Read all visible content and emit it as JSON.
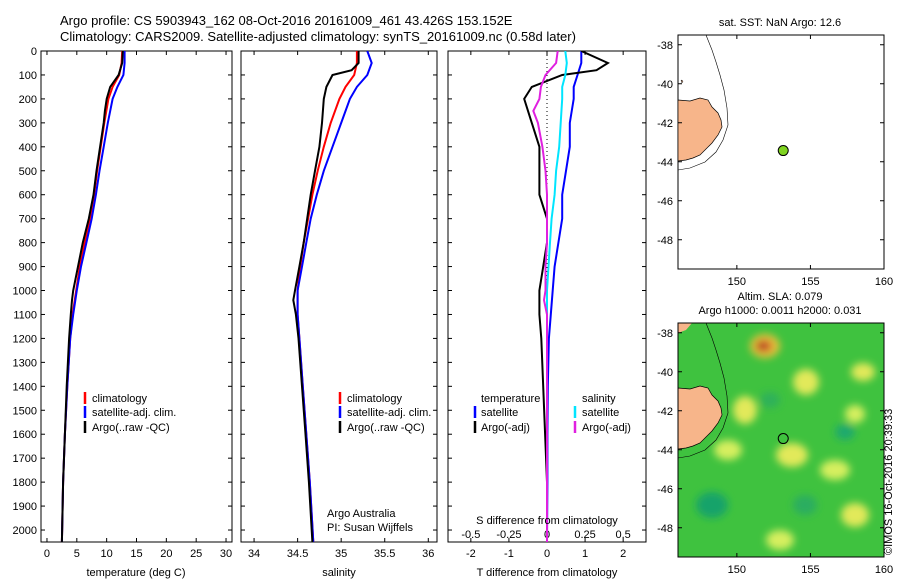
{
  "header": {
    "line1": "Argo profile: CS 5903943_162 08-Oct-2016 20161009_461 43.426S 153.152E",
    "line2": "Climatology: CARS2009. Satellite-adjusted climatology: synTS_20161009.nc (0.58d later)"
  },
  "colors": {
    "climatology": "#ff0000",
    "satellite": "#0000ff",
    "argo": "#000000",
    "sat_s": "#00e5ff",
    "argo_s": "#e020e0",
    "land": "#f7b58a",
    "marker": "#7fd321"
  },
  "chart_data": [
    {
      "type": "line",
      "name": "temperature",
      "xlabel": "temperature (deg C)",
      "ylabel": "",
      "xlim": [
        -1,
        31
      ],
      "ylim": [
        0,
        2050
      ],
      "xticks": [
        "0",
        "5",
        "10",
        "15",
        "20",
        "25",
        "30"
      ],
      "yticks": [
        "0",
        "100",
        "200",
        "300",
        "400",
        "500",
        "600",
        "700",
        "800",
        "900",
        "1000",
        "1100",
        "1200",
        "1300",
        "1400",
        "1500",
        "1600",
        "1700",
        "1800",
        "1900",
        "2000"
      ],
      "legend": [
        "climatology",
        "satellite-adj. clim.",
        "Argo(..raw -QC)"
      ],
      "series": [
        {
          "name": "climatology",
          "depth": [
            0,
            50,
            100,
            150,
            200,
            300,
            400,
            500,
            600,
            700,
            800,
            900,
            1000,
            1100,
            1200,
            1400,
            1600,
            1800,
            2050
          ],
          "values": [
            12.6,
            12.5,
            12.1,
            11.0,
            10.3,
            9.6,
            9.0,
            8.4,
            7.9,
            7.2,
            6.3,
            5.5,
            4.9,
            4.3,
            3.9,
            3.4,
            3.0,
            2.7,
            2.5
          ]
        },
        {
          "name": "satellite-adj. clim.",
          "depth": [
            0,
            50,
            100,
            150,
            200,
            300,
            400,
            500,
            600,
            700,
            800,
            900,
            1000,
            1100,
            1200,
            1400,
            1600,
            1800,
            2050
          ],
          "values": [
            13.0,
            13.0,
            12.8,
            11.8,
            11.0,
            10.2,
            9.5,
            8.8,
            8.2,
            7.5,
            6.6,
            5.7,
            5.0,
            4.4,
            3.9,
            3.4,
            3.0,
            2.7,
            2.5
          ]
        },
        {
          "name": "Argo(..raw -QC)",
          "depth": [
            0,
            50,
            100,
            150,
            200,
            250,
            300,
            400,
            500,
            600,
            700,
            800,
            900,
            1000,
            1040,
            1100,
            1200,
            1400,
            1600,
            1800,
            2050
          ],
          "values": [
            12.7,
            12.6,
            12.0,
            10.6,
            10.0,
            9.7,
            9.5,
            8.9,
            8.3,
            7.8,
            7.0,
            6.0,
            5.2,
            4.4,
            4.2,
            4.0,
            3.7,
            3.3,
            3.0,
            2.7,
            2.5
          ]
        }
      ]
    },
    {
      "type": "line",
      "name": "salinity",
      "xlabel": "salinity",
      "xlim": [
        33.85,
        36.1
      ],
      "ylim": [
        0,
        2050
      ],
      "xticks": [
        "34",
        "34.5",
        "35",
        "35.5",
        "36"
      ],
      "legend": [
        "climatology",
        "satellite-adj. clim.",
        "Argo(..raw -QC)"
      ],
      "annotation": [
        "Argo Australia",
        "PI: Susan Wijffels"
      ],
      "series": [
        {
          "name": "climatology",
          "depth": [
            0,
            50,
            100,
            150,
            200,
            300,
            400,
            500,
            600,
            700,
            800,
            900,
            1000,
            1100,
            1200,
            1400,
            1600,
            1800,
            2050
          ],
          "values": [
            35.18,
            35.18,
            35.15,
            35.05,
            34.98,
            34.88,
            34.8,
            34.73,
            34.67,
            34.62,
            34.57,
            34.53,
            34.5,
            34.5,
            34.52,
            34.56,
            34.6,
            34.64,
            34.68
          ]
        },
        {
          "name": "satellite-adj. clim.",
          "depth": [
            0,
            50,
            100,
            150,
            200,
            300,
            400,
            500,
            600,
            700,
            800,
            900,
            1000,
            1100,
            1200,
            1400,
            1600,
            1800,
            2050
          ],
          "values": [
            35.3,
            35.35,
            35.3,
            35.18,
            35.1,
            35.0,
            34.9,
            34.8,
            34.72,
            34.65,
            34.6,
            34.55,
            34.5,
            34.5,
            34.52,
            34.56,
            34.6,
            34.64,
            34.68
          ]
        },
        {
          "name": "Argo(..raw -QC)",
          "depth": [
            0,
            50,
            80,
            100,
            150,
            200,
            300,
            400,
            500,
            600,
            700,
            800,
            900,
            1000,
            1040,
            1100,
            1200,
            1400,
            1600,
            1800,
            2050
          ],
          "values": [
            35.2,
            35.2,
            35.12,
            34.9,
            34.83,
            34.8,
            34.78,
            34.75,
            34.7,
            34.65,
            34.61,
            34.57,
            34.52,
            34.47,
            34.45,
            34.48,
            34.51,
            34.55,
            34.59,
            34.63,
            34.67
          ]
        }
      ]
    },
    {
      "type": "line",
      "name": "difference",
      "xlabel": "T difference from climatology",
      "xlabel2": "S difference from climatology",
      "xlim": [
        -2.6,
        2.6
      ],
      "ylim": [
        0,
        2050
      ],
      "xticks": [
        "-2",
        "-1",
        "0",
        "1",
        "2"
      ],
      "xticks2": [
        "-0.5",
        "-0.25",
        "0",
        "0.25",
        "0.5"
      ],
      "legend_headers": [
        "temperature",
        "salinity"
      ],
      "legend": [
        "satellite",
        "Argo(-adj)",
        "satellite",
        "Argo(-adj)"
      ],
      "series": [
        {
          "name": "T satellite",
          "depth": [
            0,
            50,
            100,
            150,
            200,
            300,
            400,
            500,
            600,
            700,
            800,
            900,
            1000,
            1100,
            1200,
            1400,
            1600,
            1800,
            2050
          ],
          "values": [
            0.9,
            0.9,
            0.8,
            0.7,
            0.7,
            0.6,
            0.6,
            0.5,
            0.4,
            0.4,
            0.3,
            0.2,
            0.15,
            0.1,
            0.05,
            0.02,
            0.01,
            0.01,
            0.0
          ]
        },
        {
          "name": "T Argo(-adj)",
          "depth": [
            0,
            50,
            80,
            100,
            150,
            200,
            300,
            400,
            500,
            600,
            700,
            800,
            900,
            1000,
            1100,
            1200,
            1400,
            1600,
            1800,
            2050
          ],
          "values": [
            0.9,
            1.6,
            1.3,
            0.4,
            -0.4,
            -0.6,
            -0.4,
            -0.2,
            -0.2,
            -0.2,
            0.0,
            0.0,
            -0.1,
            -0.2,
            -0.2,
            -0.15,
            -0.1,
            -0.05,
            0.0,
            0.0
          ]
        },
        {
          "name": "S satellite",
          "depth": [
            0,
            50,
            100,
            150,
            200,
            300,
            400,
            500,
            600,
            700,
            800,
            900,
            1000,
            1100,
            1200,
            1400,
            1600,
            1800,
            2050
          ],
          "values": [
            0.12,
            0.13,
            0.12,
            0.1,
            0.1,
            0.09,
            0.08,
            0.06,
            0.05,
            0.03,
            0.02,
            0.01,
            0.0,
            0.0,
            0.0,
            0.0,
            0.0,
            0.0,
            0.0
          ]
        },
        {
          "name": "S Argo(-adj)",
          "depth": [
            0,
            50,
            100,
            150,
            200,
            250,
            300,
            400,
            500,
            600,
            700,
            800,
            900,
            1000,
            1040,
            1100,
            1200,
            1400,
            1600,
            1800,
            2050
          ],
          "values": [
            0.07,
            0.06,
            -0.01,
            -0.04,
            -0.05,
            -0.09,
            -0.06,
            -0.03,
            -0.01,
            0.0,
            0.0,
            0.0,
            -0.01,
            -0.01,
            -0.02,
            0.0,
            0.0,
            0.0,
            0.0,
            0.0,
            0.0
          ]
        }
      ]
    },
    {
      "type": "scatter",
      "name": "sst-map",
      "title": "sat. SST: NaN  Argo: 12.6",
      "xlim": [
        146,
        160
      ],
      "ylim": [
        -49.5,
        -37.5
      ],
      "xticks": [
        "150",
        "155",
        "160"
      ],
      "yticks": [
        "-38",
        "-40",
        "-42",
        "-44",
        "-46",
        "-48"
      ],
      "point": {
        "lon": 153.152,
        "lat": -43.426
      }
    },
    {
      "type": "heatmap",
      "name": "sla-map",
      "title1": "Altim. SLA: 0.079",
      "title2": "Argo h1000: 0.0011  h2000: 0.031",
      "xlim": [
        146,
        160
      ],
      "ylim": [
        -49.5,
        -37.5
      ],
      "xticks": [
        "150",
        "155",
        "160"
      ],
      "yticks": [
        "-38",
        "-40",
        "-42",
        "-44",
        "-46",
        "-48"
      ],
      "point": {
        "lon": 153.152,
        "lat": -43.426
      }
    }
  ],
  "credit": "©IMOS 16-Oct-2016 20:39:33"
}
